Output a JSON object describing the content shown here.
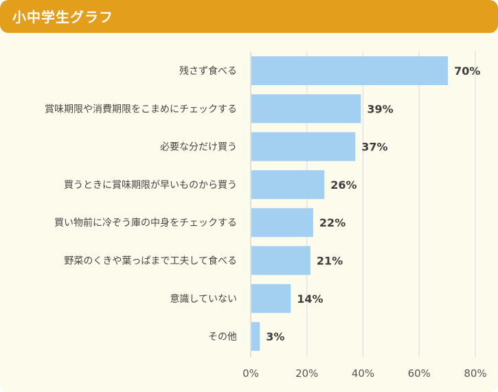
{
  "header": {
    "title": "小中学生グラフ"
  },
  "colors": {
    "header": "#e39e1b",
    "background": "#fcfbec",
    "bar": "#a3d0f0",
    "grid": "#dedede"
  },
  "chart_data": {
    "type": "bar",
    "orientation": "horizontal",
    "categories": [
      "残さず食べる",
      "賞味期限や消費期限をこまめにチェックする",
      "必要な分だけ買う",
      "買うときに賞味期限が早いものから買う",
      "買い物前に冷ぞう庫の中身をチェックする",
      "野菜のくきや葉っぱまで工夫して食べる",
      "意識していない",
      "その他"
    ],
    "values": [
      70,
      39,
      37,
      26,
      22,
      21,
      14,
      3
    ],
    "value_labels": [
      "70%",
      "39%",
      "37%",
      "26%",
      "22%",
      "21%",
      "14%",
      "3%"
    ],
    "xlim": [
      0,
      80
    ],
    "xticks": [
      "0%",
      "20%",
      "40%",
      "60%",
      "80%"
    ],
    "grid": true
  }
}
